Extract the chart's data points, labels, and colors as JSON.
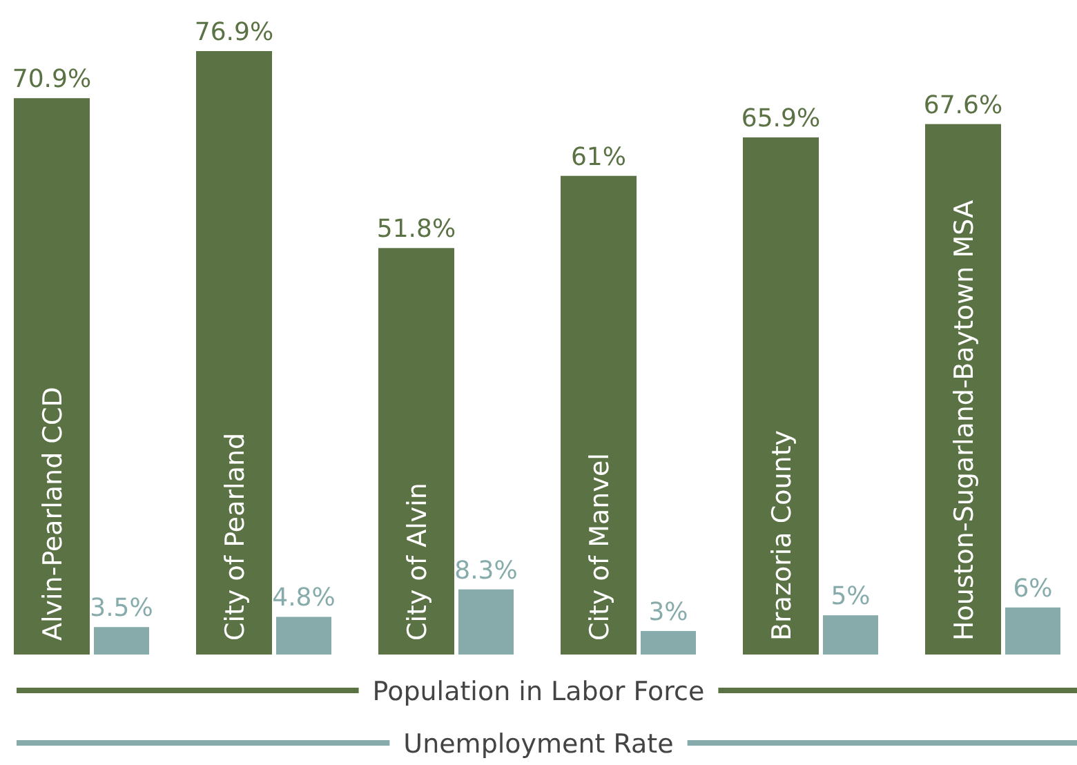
{
  "chart_data": {
    "type": "bar",
    "categories": [
      "Alvin-Pearland CCD",
      "City of Pearland",
      "City of Alvin",
      "City of Manvel",
      "Brazoria County",
      "Houston-Sugarland-Baytown MSA"
    ],
    "series": [
      {
        "name": "Population in Labor Force",
        "color": "#5a7244",
        "values": [
          70.9,
          76.9,
          51.8,
          61,
          65.9,
          67.6
        ],
        "value_labels": [
          "70.9%",
          "76.9%",
          "51.8%",
          "61%",
          "65.9%",
          "67.6%"
        ]
      },
      {
        "name": "Unemployment Rate",
        "color": "#86abaa",
        "values": [
          3.5,
          4.8,
          8.3,
          3,
          5,
          6
        ],
        "value_labels": [
          "3.5%",
          "4.8%",
          "8.3%",
          "3%",
          "5%",
          "6%"
        ]
      }
    ],
    "legend": "bottom"
  }
}
